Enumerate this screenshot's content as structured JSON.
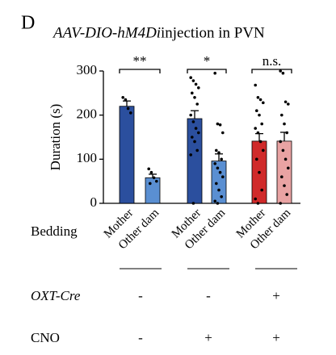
{
  "panel_label": "D",
  "chart_data": {
    "type": "bar",
    "title": [
      "AAV-DIO-hM4Di",
      "injection in PVN"
    ],
    "y_label": "Duration (s)",
    "x_label": "Bedding",
    "categories": [
      "Mother",
      "Other dam",
      "Mother",
      "Other dam",
      "Mother",
      "Other dam"
    ],
    "values": [
      220,
      58,
      192,
      96,
      141,
      141
    ],
    "errors": [
      12,
      8,
      18,
      16,
      17,
      20
    ],
    "colors": [
      "#2b4f9e",
      "#5a8fd2",
      "#2b4f9e",
      "#5a8fd2",
      "#d02a2a",
      "#e9a3a3"
    ],
    "points": [
      [
        240,
        235,
        215,
        205
      ],
      [
        78,
        70,
        58,
        50,
        45
      ],
      [
        285,
        278,
        270,
        262,
        250,
        240,
        225,
        200,
        185,
        170,
        160,
        150,
        140,
        120,
        110,
        0
      ],
      [
        295,
        180,
        178,
        160,
        120,
        115,
        100,
        90,
        80,
        70,
        60,
        45,
        30,
        15,
        5,
        0
      ],
      [
        268,
        240,
        235,
        228,
        210,
        200,
        180,
        170,
        160,
        140,
        120,
        100,
        70,
        30,
        10,
        0
      ],
      [
        300,
        295,
        230,
        225,
        200,
        180,
        160,
        140,
        120,
        100,
        80,
        60,
        40,
        20,
        0
      ]
    ],
    "significance": [
      "**",
      "*",
      "n.s."
    ],
    "ylim": [
      0,
      300
    ],
    "yticks": [
      0,
      100,
      200,
      300
    ]
  },
  "conditions": [
    {
      "name": "OXT-Cre",
      "values": [
        "-",
        "-",
        "+"
      ]
    },
    {
      "name": "CNO",
      "values": [
        "-",
        "+",
        "+"
      ]
    }
  ]
}
